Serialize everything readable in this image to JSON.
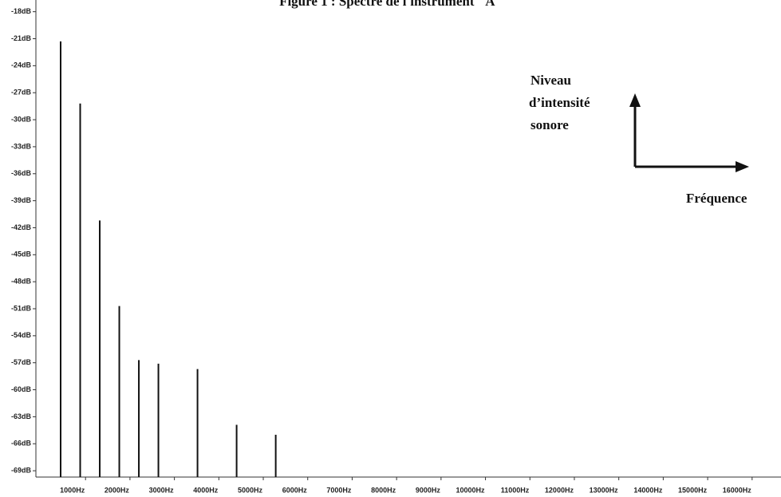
{
  "chart_data": {
    "type": "spectrum",
    "title": "Figure 1 : Spectre de l'instrument \"A\"",
    "annotations": [
      "Niveau",
      "d’intensité",
      "sonore",
      "Fréquence"
    ],
    "x": [
      440,
      880,
      1320,
      1760,
      2200,
      2640,
      3520,
      4400,
      5280
    ],
    "values": [
      -21.3,
      -28.2,
      -41.2,
      -50.7,
      -56.7,
      -57.1,
      -57.7,
      -63.9,
      -65.0
    ],
    "color": "#111111",
    "xlim": [
      0,
      16650
    ],
    "ylim": [
      -69.7,
      -16.7
    ],
    "xticks": [
      {
        "value": 1000,
        "label": "1000Hz"
      },
      {
        "value": 2000,
        "label": "2000Hz"
      },
      {
        "value": 3000,
        "label": "3000Hz"
      },
      {
        "value": 4000,
        "label": "4000Hz"
      },
      {
        "value": 5000,
        "label": "5000Hz"
      },
      {
        "value": 6000,
        "label": "6000Hz"
      },
      {
        "value": 7000,
        "label": "7000Hz"
      },
      {
        "value": 8000,
        "label": "8000Hz"
      },
      {
        "value": 9000,
        "label": "9000Hz"
      },
      {
        "value": 10000,
        "label": "10000Hz"
      },
      {
        "value": 11000,
        "label": "11000Hz"
      },
      {
        "value": 12000,
        "label": "12000Hz"
      },
      {
        "value": 13000,
        "label": "13000Hz"
      },
      {
        "value": 14000,
        "label": "14000Hz"
      },
      {
        "value": 15000,
        "label": "15000Hz"
      },
      {
        "value": 16000,
        "label": "16000Hz"
      }
    ],
    "yticks": [
      {
        "value": -18,
        "label": "-18dB"
      },
      {
        "value": -21,
        "label": "-21dB"
      },
      {
        "value": -24,
        "label": "-24dB"
      },
      {
        "value": -27,
        "label": "-27dB"
      },
      {
        "value": -30,
        "label": "-30dB"
      },
      {
        "value": -33,
        "label": "-33dB"
      },
      {
        "value": -36,
        "label": "-36dB"
      },
      {
        "value": -39,
        "label": "-39dB"
      },
      {
        "value": -42,
        "label": "-42dB"
      },
      {
        "value": -45,
        "label": "-45dB"
      },
      {
        "value": -48,
        "label": "-48dB"
      },
      {
        "value": -51,
        "label": "-51dB"
      },
      {
        "value": -54,
        "label": "-54dB"
      },
      {
        "value": -57,
        "label": "-57dB"
      },
      {
        "value": -60,
        "label": "-60dB"
      },
      {
        "value": -63,
        "label": "-63dB"
      },
      {
        "value": -66,
        "label": "-66dB"
      },
      {
        "value": -69,
        "label": "-69dB"
      }
    ]
  }
}
